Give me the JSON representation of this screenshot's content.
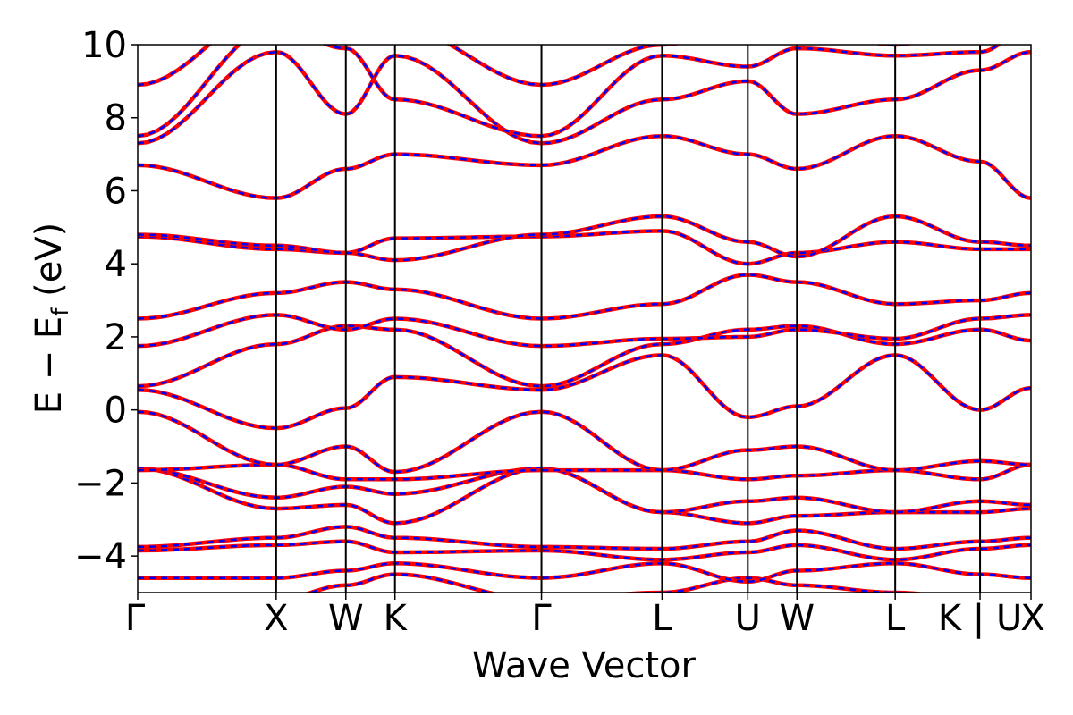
{
  "chart_data": {
    "type": "line",
    "title": "",
    "xlabel": "Wave Vector",
    "ylabel": "E − E",
    "ylabel_sub": "f",
    "ylabel_unit": " (eV)",
    "ylim": [
      -5,
      10
    ],
    "yticks": [
      -4,
      -2,
      0,
      2,
      4,
      6,
      8,
      10
    ],
    "ytick_labels": [
      "−4",
      "−2",
      "0",
      "2",
      "4",
      "6",
      "8",
      "10"
    ],
    "xlim": [
      0,
      10.0
    ],
    "kpoints": [
      {
        "label": "Γ",
        "x": 0.0
      },
      {
        "label": "X",
        "x": 1.55
      },
      {
        "label": "W",
        "x": 2.33
      },
      {
        "label": "K",
        "x": 2.88
      },
      {
        "label": "Γ",
        "x": 4.52
      },
      {
        "label": "L",
        "x": 5.87
      },
      {
        "label": "U",
        "x": 6.83
      },
      {
        "label": "W",
        "x": 7.38
      },
      {
        "label": "L",
        "x": 8.48
      },
      {
        "label": "K | U",
        "x": 9.43
      },
      {
        "label": "X",
        "x": 10.0
      }
    ],
    "grid": false,
    "legend": "none",
    "colors": {
      "series_a": "#ff0000",
      "series_b": "#0000ff",
      "vlines": "#000000"
    },
    "bands": [
      [
        -5.3,
        -5.2,
        -4.8,
        -4.5,
        -5.2,
        -5.0,
        -4.6,
        -4.8,
        -5.0,
        -5.2,
        -5.3
      ],
      [
        -4.6,
        -4.6,
        -4.4,
        -4.2,
        -4.6,
        -4.2,
        -4.7,
        -4.4,
        -4.2,
        -4.5,
        -4.6
      ],
      [
        -3.85,
        -3.7,
        -3.6,
        -3.9,
        -3.85,
        -4.1,
        -3.9,
        -3.7,
        -4.1,
        -3.8,
        -3.7
      ],
      [
        -3.75,
        -3.5,
        -3.2,
        -3.5,
        -3.75,
        -3.8,
        -3.6,
        -3.3,
        -3.8,
        -3.6,
        -3.5
      ],
      [
        -1.6,
        -2.7,
        -2.6,
        -3.1,
        -1.6,
        -2.8,
        -3.1,
        -2.9,
        -2.8,
        -2.8,
        -2.7
      ],
      [
        -1.6,
        -2.4,
        -2.1,
        -2.3,
        -1.6,
        -2.8,
        -2.5,
        -2.4,
        -2.8,
        -2.5,
        -2.6
      ],
      [
        -1.65,
        -1.5,
        -1.9,
        -1.9,
        -1.65,
        -1.65,
        -1.9,
        -1.8,
        -1.65,
        -1.9,
        -1.5
      ],
      [
        -0.05,
        -1.5,
        -1.0,
        -1.7,
        -0.05,
        -1.65,
        -1.1,
        -1.0,
        -1.65,
        -1.4,
        -1.5
      ],
      [
        0.55,
        -0.5,
        0.05,
        0.9,
        0.55,
        1.5,
        -0.2,
        0.1,
        1.5,
        0.0,
        0.6
      ],
      [
        0.65,
        1.8,
        2.3,
        2.2,
        0.65,
        1.8,
        2.2,
        2.3,
        1.8,
        2.2,
        1.9
      ],
      [
        1.75,
        2.6,
        2.2,
        2.5,
        1.75,
        1.95,
        2.0,
        2.2,
        1.95,
        2.5,
        2.6
      ],
      [
        2.5,
        3.2,
        3.5,
        3.3,
        2.5,
        2.9,
        3.7,
        3.5,
        2.9,
        3.0,
        3.2
      ],
      [
        4.75,
        4.4,
        4.3,
        4.7,
        4.75,
        4.9,
        4.0,
        4.3,
        4.6,
        4.4,
        4.4
      ],
      [
        4.8,
        4.5,
        4.3,
        4.1,
        4.8,
        5.3,
        4.6,
        4.2,
        5.3,
        4.6,
        4.5
      ],
      [
        6.7,
        5.8,
        6.6,
        7.0,
        6.7,
        7.5,
        7.0,
        6.6,
        7.5,
        6.8,
        5.8
      ],
      [
        7.3,
        9.8,
        8.1,
        9.7,
        7.3,
        8.5,
        9.0,
        8.1,
        8.5,
        9.3,
        9.8
      ],
      [
        7.5,
        10.5,
        9.9,
        8.5,
        7.5,
        9.7,
        9.4,
        9.9,
        9.7,
        9.8,
        10.5
      ],
      [
        8.9,
        11.0,
        10.5,
        10.5,
        8.9,
        10.0,
        10.5,
        10.5,
        10.0,
        10.5,
        11.0
      ]
    ]
  }
}
